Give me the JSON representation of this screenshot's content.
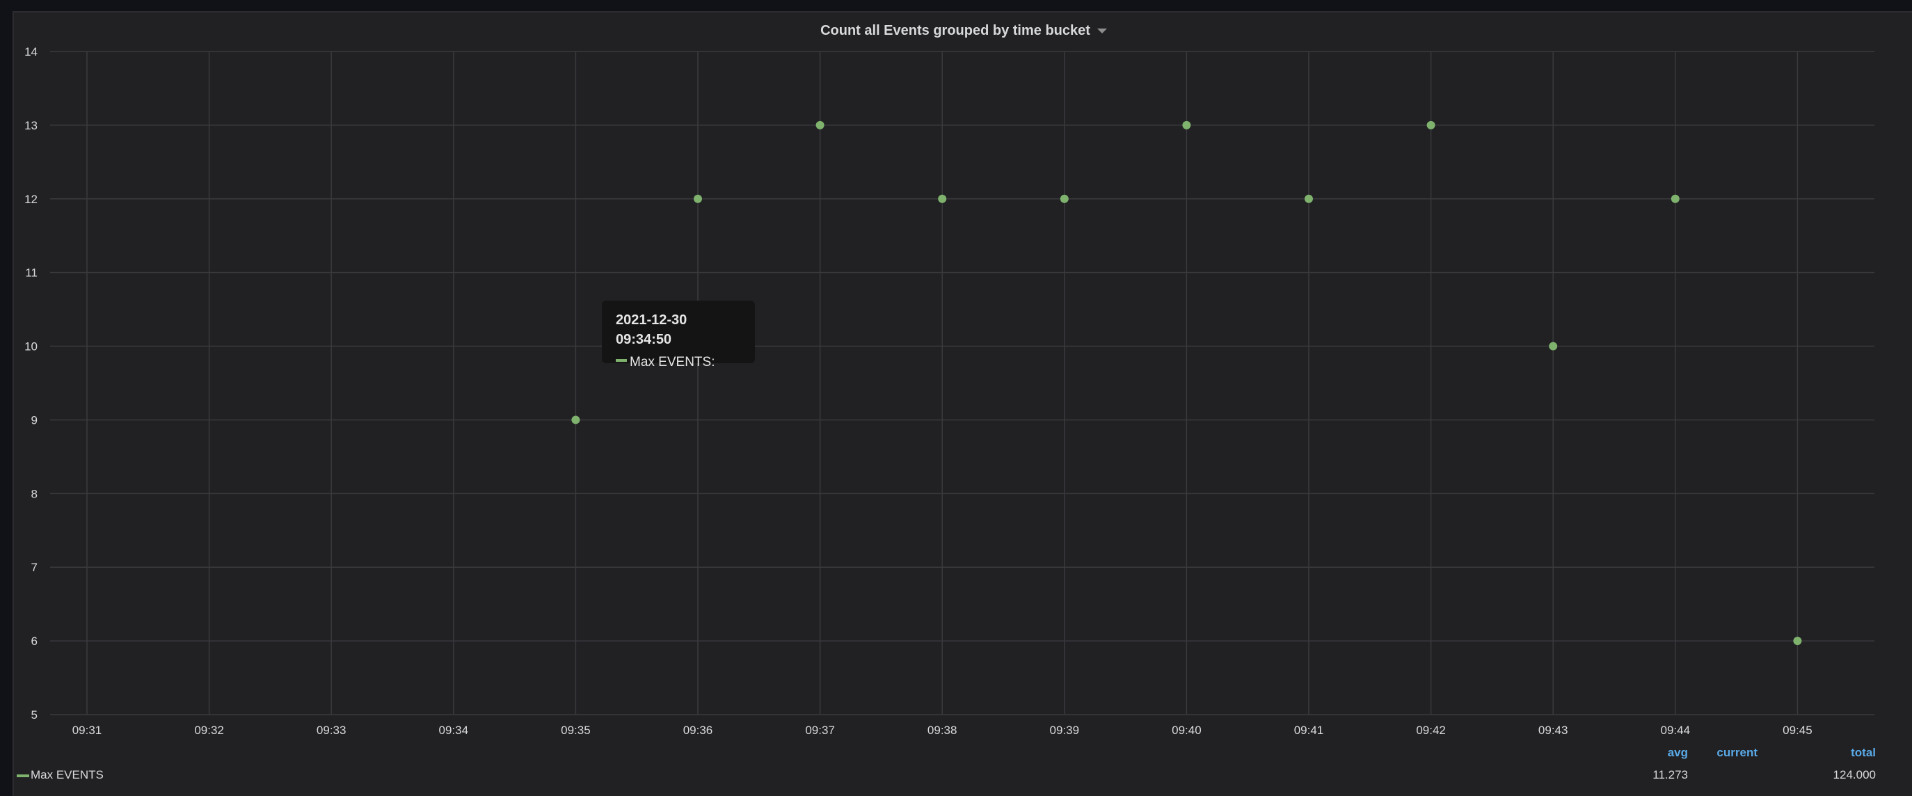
{
  "panel": {
    "title": "Count all Events grouped by time bucket"
  },
  "tooltip": {
    "time": "2021-12-30 09:34:50",
    "series_label": "Max EVENTS:"
  },
  "legend": {
    "headers": {
      "avg": "avg",
      "current": "current",
      "total": "total"
    },
    "series": [
      {
        "name": "Max EVENTS",
        "avg": "11.273",
        "current": "",
        "total": "124.000"
      }
    ]
  },
  "colors": {
    "series": "#7eb26d",
    "grid": "#3a3a3d",
    "legend_header": "#5aa9e6"
  },
  "chart_data": {
    "type": "scatter",
    "title": "Count all Events grouped by time bucket",
    "x_ticks": [
      "09:31",
      "09:32",
      "09:33",
      "09:34",
      "09:35",
      "09:36",
      "09:37",
      "09:38",
      "09:39",
      "09:40",
      "09:41",
      "09:42",
      "09:43",
      "09:44",
      "09:45"
    ],
    "y_ticks": [
      5,
      6,
      7,
      8,
      9,
      10,
      11,
      12,
      13,
      14
    ],
    "ylim": [
      5,
      14
    ],
    "xlabel": "",
    "ylabel": "",
    "grid": true,
    "legend_position": "bottom",
    "series": [
      {
        "name": "Max EVENTS",
        "color": "#7eb26d",
        "points": [
          {
            "x": "09:35",
            "y": 9
          },
          {
            "x": "09:36",
            "y": 12
          },
          {
            "x": "09:37",
            "y": 13
          },
          {
            "x": "09:38",
            "y": 12
          },
          {
            "x": "09:39",
            "y": 12
          },
          {
            "x": "09:40",
            "y": 13
          },
          {
            "x": "09:41",
            "y": 12
          },
          {
            "x": "09:42",
            "y": 13
          },
          {
            "x": "09:43",
            "y": 10
          },
          {
            "x": "09:44",
            "y": 12
          },
          {
            "x": "09:45",
            "y": 6
          }
        ]
      }
    ]
  }
}
